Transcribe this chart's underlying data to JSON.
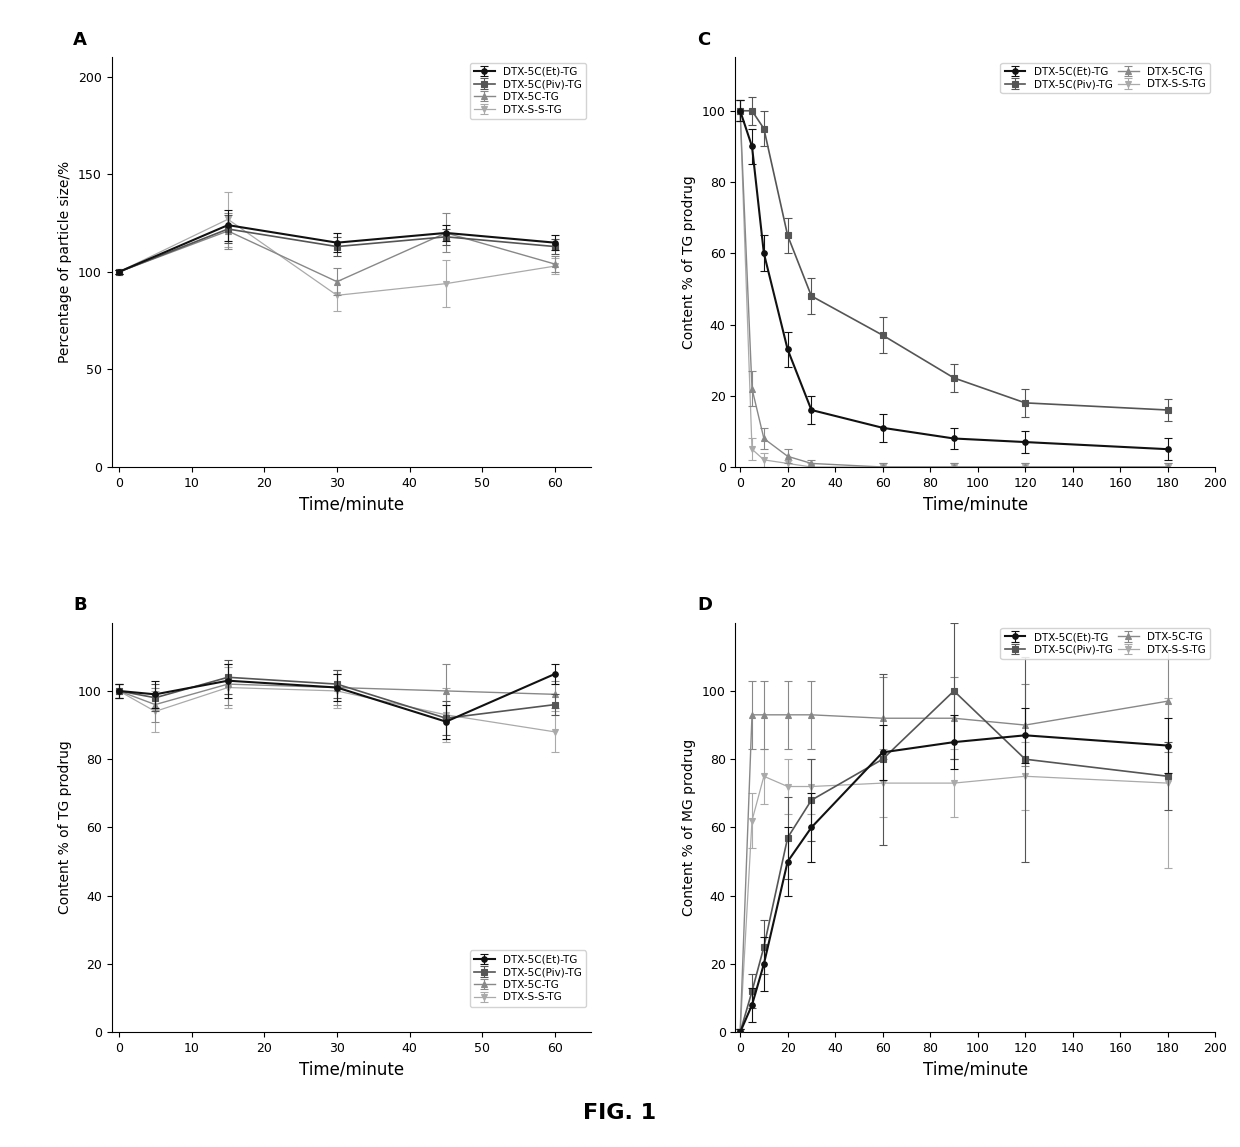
{
  "series_labels": [
    "DTX-5C(Et)-TG",
    "DTX-5C(Piv)-TG",
    "DTX-5C-TG",
    "DTX-S-S-TG"
  ],
  "colors": [
    "#111111",
    "#555555",
    "#888888",
    "#aaaaaa"
  ],
  "markers": [
    "o",
    "s",
    "^",
    "v"
  ],
  "linestyles": [
    "-",
    "-",
    "-",
    "-"
  ],
  "linewidths": [
    1.5,
    1.2,
    1.0,
    0.9
  ],
  "A": {
    "title": "A",
    "xlabel": "Time/minute",
    "ylabel": "Percentage of particle size/%",
    "xlim": [
      -1,
      65
    ],
    "ylim": [
      0,
      210
    ],
    "yticks": [
      0,
      50,
      100,
      150,
      200
    ],
    "xticks": [
      0,
      10,
      20,
      30,
      40,
      50,
      60
    ],
    "x": [
      0,
      15,
      30,
      45,
      60
    ],
    "y": [
      [
        100,
        124,
        115,
        120,
        115
      ],
      [
        100,
        122,
        113,
        118,
        113
      ],
      [
        100,
        121,
        95,
        120,
        104
      ],
      [
        100,
        127,
        88,
        94,
        103
      ]
    ],
    "yerr": [
      [
        1,
        8,
        5,
        4,
        4
      ],
      [
        1,
        7,
        5,
        4,
        4
      ],
      [
        1,
        9,
        7,
        10,
        4
      ],
      [
        1,
        14,
        8,
        12,
        4
      ]
    ]
  },
  "B": {
    "title": "B",
    "xlabel": "Time/minute",
    "ylabel": "Content % of TG prodrug",
    "xlim": [
      -1,
      65
    ],
    "ylim": [
      0,
      120
    ],
    "yticks": [
      0,
      20,
      40,
      60,
      80,
      100
    ],
    "xticks": [
      0,
      10,
      20,
      30,
      40,
      50,
      60
    ],
    "x": [
      0,
      5,
      15,
      30,
      45,
      60
    ],
    "y": [
      [
        100,
        99,
        103,
        101,
        91,
        105
      ],
      [
        100,
        98,
        104,
        102,
        92,
        96
      ],
      [
        100,
        96,
        102,
        101,
        100,
        99
      ],
      [
        100,
        94,
        101,
        100,
        93,
        88
      ]
    ],
    "yerr": [
      [
        2,
        4,
        5,
        4,
        5,
        3
      ],
      [
        2,
        4,
        5,
        4,
        5,
        3
      ],
      [
        2,
        5,
        6,
        5,
        8,
        4
      ],
      [
        2,
        6,
        6,
        5,
        8,
        6
      ]
    ]
  },
  "C": {
    "title": "C",
    "xlabel": "Time/minute",
    "ylabel": "Content % of TG prodrug",
    "xlim": [
      -2,
      200
    ],
    "ylim": [
      0,
      115
    ],
    "yticks": [
      0,
      20,
      40,
      60,
      80,
      100
    ],
    "xticks": [
      0,
      20,
      40,
      60,
      80,
      100,
      120,
      140,
      160,
      180,
      200
    ],
    "x": [
      0,
      5,
      10,
      20,
      30,
      60,
      90,
      120,
      180
    ],
    "y": [
      [
        100,
        90,
        60,
        33,
        16,
        11,
        8,
        7,
        5
      ],
      [
        100,
        100,
        95,
        65,
        48,
        37,
        25,
        18,
        16
      ],
      [
        100,
        22,
        8,
        3,
        1,
        0,
        0,
        0,
        0
      ],
      [
        100,
        5,
        2,
        1,
        0,
        0,
        0,
        0,
        0
      ]
    ],
    "yerr": [
      [
        3,
        5,
        5,
        5,
        4,
        4,
        3,
        3,
        3
      ],
      [
        3,
        4,
        5,
        5,
        5,
        5,
        4,
        4,
        3
      ],
      [
        3,
        5,
        3,
        2,
        1,
        1,
        1,
        1,
        1
      ],
      [
        3,
        3,
        2,
        1,
        1,
        1,
        1,
        1,
        1
      ]
    ]
  },
  "D": {
    "title": "D",
    "xlabel": "Time/minute",
    "ylabel": "Content % of MG prodrug",
    "xlim": [
      -2,
      200
    ],
    "ylim": [
      0,
      120
    ],
    "yticks": [
      0,
      20,
      40,
      60,
      80,
      100
    ],
    "xticks": [
      0,
      20,
      40,
      60,
      80,
      100,
      120,
      140,
      160,
      180,
      200
    ],
    "x": [
      0,
      5,
      10,
      20,
      30,
      60,
      90,
      120,
      180
    ],
    "y": [
      [
        0,
        8,
        20,
        50,
        60,
        82,
        85,
        87,
        84
      ],
      [
        0,
        12,
        25,
        57,
        68,
        80,
        100,
        80,
        75
      ],
      [
        0,
        93,
        93,
        93,
        93,
        92,
        92,
        90,
        97
      ],
      [
        0,
        62,
        75,
        72,
        72,
        73,
        73,
        75,
        73
      ]
    ],
    "yerr": [
      [
        1,
        5,
        8,
        10,
        10,
        8,
        8,
        8,
        8
      ],
      [
        1,
        5,
        8,
        12,
        12,
        25,
        20,
        30,
        10
      ],
      [
        1,
        10,
        10,
        10,
        10,
        12,
        12,
        12,
        15
      ],
      [
        1,
        8,
        8,
        8,
        8,
        10,
        10,
        10,
        25
      ]
    ]
  },
  "fig_title": "FIG. 1",
  "background_color": "#ffffff"
}
